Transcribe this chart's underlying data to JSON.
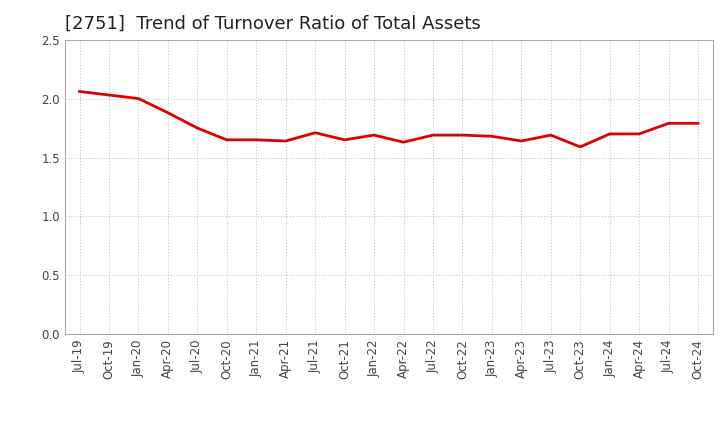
{
  "title": "[2751]  Trend of Turnover Ratio of Total Assets",
  "x_labels": [
    "Jul-19",
    "Oct-19",
    "Jan-20",
    "Apr-20",
    "Jul-20",
    "Oct-20",
    "Jan-21",
    "Apr-21",
    "Jul-21",
    "Oct-21",
    "Jan-22",
    "Apr-22",
    "Jul-22",
    "Oct-22",
    "Jan-23",
    "Apr-23",
    "Jul-23",
    "Oct-23",
    "Jan-24",
    "Apr-24",
    "Jul-24",
    "Oct-24"
  ],
  "y_values": [
    2.06,
    2.03,
    2.0,
    1.88,
    1.75,
    1.65,
    1.65,
    1.64,
    1.71,
    1.65,
    1.69,
    1.63,
    1.69,
    1.69,
    1.68,
    1.64,
    1.69,
    1.59,
    1.7,
    1.7,
    1.79,
    1.79
  ],
  "line_color": "#dd0000",
  "line_width": 2.0,
  "ylim": [
    0.0,
    2.5
  ],
  "yticks": [
    0.0,
    0.5,
    1.0,
    1.5,
    2.0,
    2.5
  ],
  "background_color": "#ffffff",
  "grid_color": "#bbbbbb",
  "title_fontsize": 13,
  "tick_fontsize": 8.5,
  "title_color": "#222222",
  "spine_color": "#aaaaaa"
}
